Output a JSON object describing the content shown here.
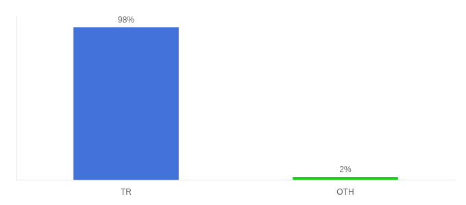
{
  "chart_data": {
    "type": "bar",
    "categories": [
      "TR",
      "OTH"
    ],
    "values": [
      98,
      2
    ],
    "value_labels": [
      "98%",
      "2%"
    ],
    "colors": [
      "#4472db",
      "#22cc22"
    ],
    "ylim": [
      0,
      105
    ],
    "data_labels": true,
    "tick_labels": "x",
    "grid": false
  }
}
